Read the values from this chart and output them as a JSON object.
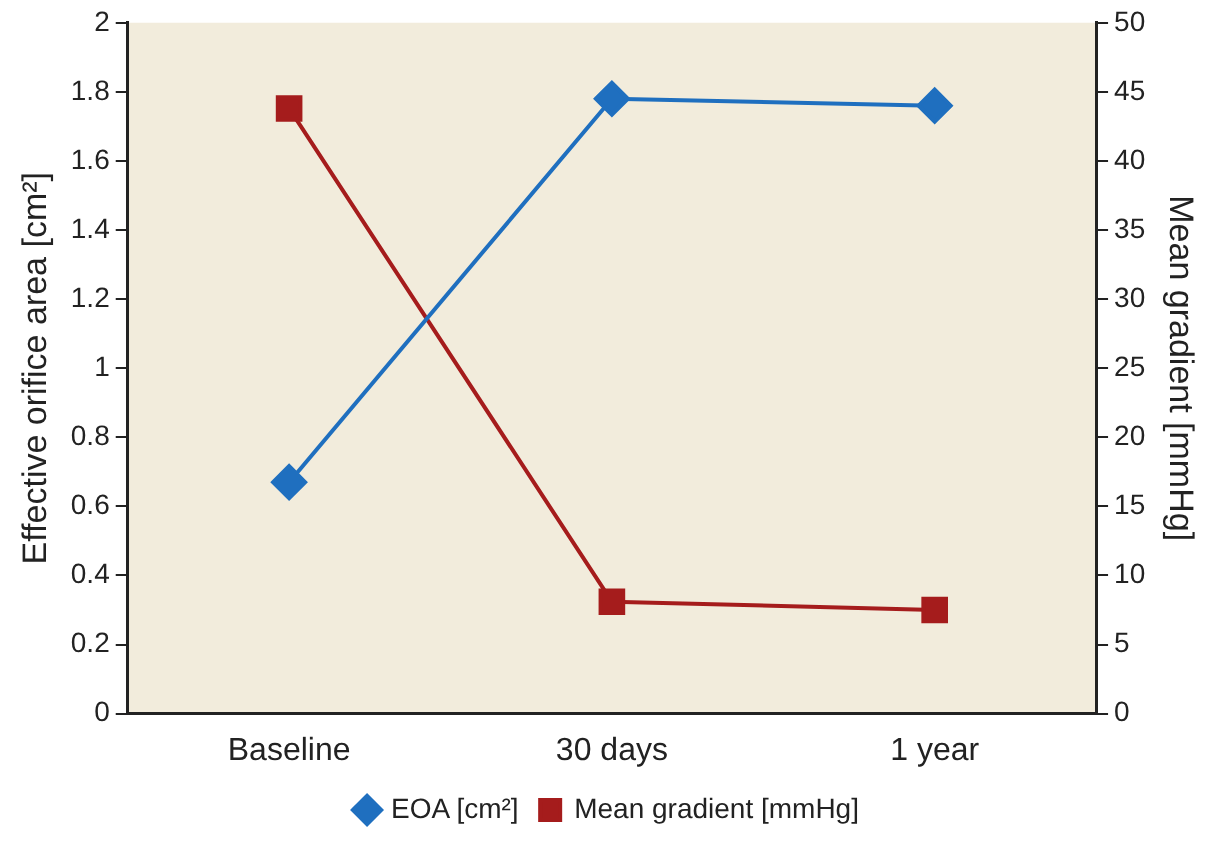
{
  "chart_data": {
    "type": "line",
    "categories": [
      "Baseline",
      "30 days",
      "1 year"
    ],
    "ylabel": "Effective orifice area [cm²]",
    "y2label": "Mean gradient [mmHg]",
    "ylim": [
      0,
      2
    ],
    "yticks": [
      0,
      0.2,
      0.4,
      0.6,
      0.8,
      1,
      1.2,
      1.4,
      1.6,
      1.8,
      2
    ],
    "y2lim": [
      0,
      50
    ],
    "y2ticks": [
      0,
      5,
      10,
      15,
      20,
      25,
      30,
      35,
      40,
      45,
      50
    ],
    "series": [
      {
        "name": "EOA [cm²]",
        "color": "#1f6fbf",
        "values": [
          0.67,
          1.78,
          1.76
        ],
        "marker": "diamond"
      },
      {
        "name": "Mean gradient [mmHg]",
        "color": "#a51c1c",
        "values": [
          43.8,
          8.1,
          7.5
        ],
        "axis": "y2",
        "marker": "square"
      }
    ],
    "grid": false,
    "legend": "bottom",
    "line_style": "solid"
  }
}
